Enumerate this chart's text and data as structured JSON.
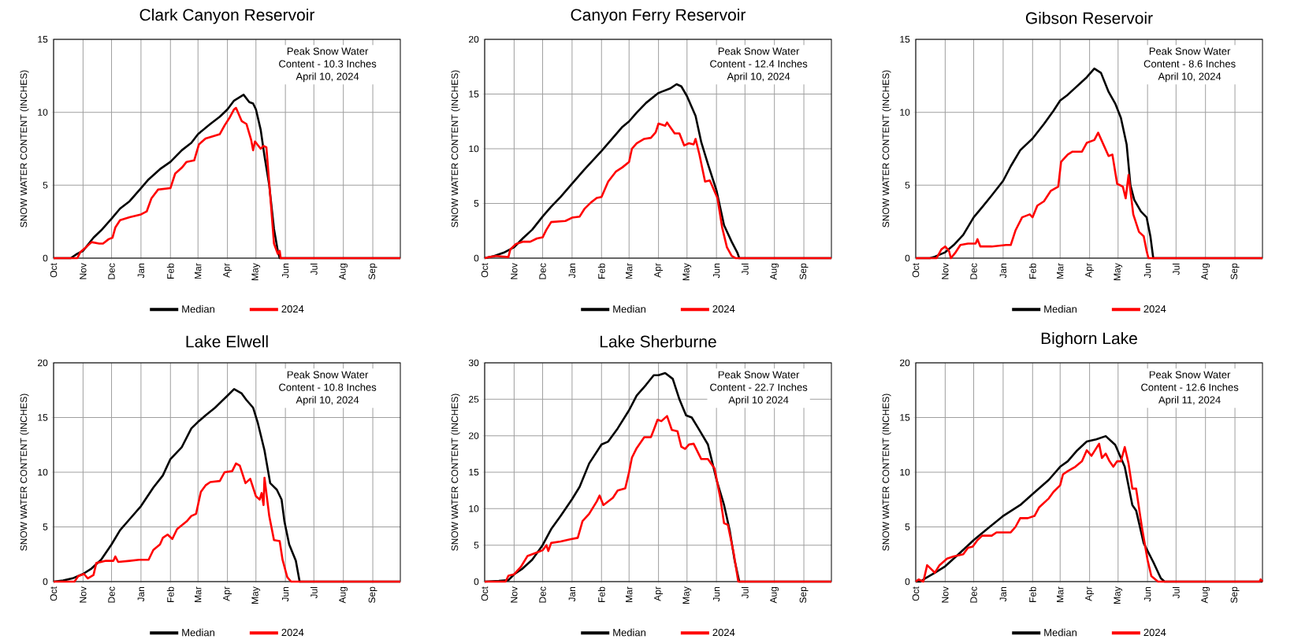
{
  "chart_data": [
    {
      "type": "line",
      "title": "Clark Canyon Reservoir",
      "ylabel": "SNOW WATER CONTENT (INCHES)",
      "annotations": [
        "Peak Snow Water",
        "Content - 10.3 Inches",
        "April 10, 2024"
      ],
      "xlim": [
        "2023-10-01",
        "2024-09-30"
      ],
      "ylim": [
        0,
        15
      ],
      "yticks": [
        0,
        5,
        10,
        15
      ],
      "grid": true,
      "legend": "bottom",
      "xticks": [
        {
          "value": "2023-10-01",
          "label": "Oct"
        },
        {
          "value": "2023-11-01",
          "label": "Nov"
        },
        {
          "value": "2023-12-01",
          "label": "Dec"
        },
        {
          "value": "2024-01-01",
          "label": "Jan"
        },
        {
          "value": "2024-02-01",
          "label": "Feb"
        },
        {
          "value": "2024-03-01",
          "label": "Mar"
        },
        {
          "value": "2024-04-01",
          "label": "Apr"
        },
        {
          "value": "2024-05-01",
          "label": "May"
        },
        {
          "value": "2024-06-01",
          "label": "Jun"
        },
        {
          "value": "2024-07-01",
          "label": "Jul"
        },
        {
          "value": "2024-08-01",
          "label": "Aug"
        },
        {
          "value": "2024-09-01",
          "label": "Sep"
        }
      ],
      "series": [
        {
          "name": "Median",
          "color": "#000000",
          "x": [
            "2023-10-01",
            "2023-10-19",
            "2023-10-26",
            "2023-11-01",
            "2023-11-12",
            "2023-11-20",
            "2023-12-01",
            "2023-12-10",
            "2023-12-20",
            "2024-01-01",
            "2024-01-09",
            "2024-01-21",
            "2024-02-01",
            "2024-02-13",
            "2024-02-23",
            "2024-03-01",
            "2024-03-14",
            "2024-03-24",
            "2024-04-01",
            "2024-04-08",
            "2024-04-18",
            "2024-04-24",
            "2024-04-28",
            "2024-05-01",
            "2024-05-06",
            "2024-05-10",
            "2024-05-15",
            "2024-05-20",
            "2024-05-24",
            "2024-05-26",
            "2024-09-30"
          ],
          "values": [
            0,
            0,
            0.3,
            0.5,
            1.4,
            1.9,
            2.7,
            3.4,
            3.9,
            4.8,
            5.4,
            6.1,
            6.6,
            7.4,
            7.9,
            8.5,
            9.2,
            9.7,
            10.2,
            10.8,
            11.2,
            10.7,
            10.6,
            10.2,
            8.8,
            7,
            5,
            2,
            0.5,
            0,
            0
          ]
        },
        {
          "name": "2024",
          "color": "#ff0000",
          "x": [
            "2023-10-01",
            "2023-10-26",
            "2023-10-29",
            "2023-11-05",
            "2023-11-10",
            "2023-11-18",
            "2023-11-22",
            "2023-11-28",
            "2023-12-02",
            "2023-12-05",
            "2023-12-10",
            "2023-12-20",
            "2024-01-01",
            "2024-01-07",
            "2024-01-12",
            "2024-01-19",
            "2024-02-01",
            "2024-02-06",
            "2024-02-13",
            "2024-02-18",
            "2024-02-26",
            "2024-03-02",
            "2024-03-09",
            "2024-03-24",
            "2024-03-29",
            "2024-04-03",
            "2024-04-08",
            "2024-04-10",
            "2024-04-16",
            "2024-04-21",
            "2024-04-26",
            "2024-04-28",
            "2024-04-30",
            "2024-05-06",
            "2024-05-09",
            "2024-05-12",
            "2024-05-17",
            "2024-05-20",
            "2024-05-24",
            "2024-05-26",
            "2024-05-27",
            "2024-09-30"
          ],
          "values": [
            0,
            0,
            0.4,
            0.8,
            1.1,
            1.0,
            1.0,
            1.3,
            1.4,
            2.1,
            2.6,
            2.8,
            3.0,
            3.2,
            4.1,
            4.7,
            4.8,
            5.8,
            6.2,
            6.6,
            6.7,
            7.8,
            8.2,
            8.5,
            9.1,
            9.6,
            10.2,
            10.3,
            9.4,
            9.2,
            8.1,
            7.4,
            8.0,
            7.5,
            7.7,
            7.6,
            3.5,
            1.0,
            0.3,
            0.5,
            0,
            0
          ]
        }
      ]
    },
    {
      "type": "line",
      "title": "Canyon Ferry Reservoir",
      "ylabel": "SNOW WATER CONTENT (INCHES)",
      "annotations": [
        "Peak Snow Water",
        "Content - 12.4 Inches",
        "April 10, 2024"
      ],
      "xlim": [
        "2023-10-01",
        "2024-09-30"
      ],
      "ylim": [
        0,
        20
      ],
      "yticks": [
        0,
        5,
        10,
        15,
        20
      ],
      "grid": true,
      "legend": "bottom",
      "xticks": [
        {
          "value": "2023-10-01",
          "label": "Oct"
        },
        {
          "value": "2023-11-01",
          "label": "Nov"
        },
        {
          "value": "2023-12-01",
          "label": "Dec"
        },
        {
          "value": "2024-01-01",
          "label": "Jan"
        },
        {
          "value": "2024-02-01",
          "label": "Feb"
        },
        {
          "value": "2024-03-01",
          "label": "Mar"
        },
        {
          "value": "2024-04-01",
          "label": "Apr"
        },
        {
          "value": "2024-05-01",
          "label": "May"
        },
        {
          "value": "2024-06-01",
          "label": "Jun"
        },
        {
          "value": "2024-07-01",
          "label": "Jul"
        },
        {
          "value": "2024-08-01",
          "label": "Aug"
        },
        {
          "value": "2024-09-01",
          "label": "Sep"
        }
      ],
      "series": [
        {
          "name": "Median",
          "color": "#000000",
          "x": [
            "2023-10-01",
            "2023-10-11",
            "2023-10-21",
            "2023-11-01",
            "2023-11-10",
            "2023-11-20",
            "2023-12-01",
            "2023-12-10",
            "2023-12-20",
            "2024-01-01",
            "2024-01-14",
            "2024-02-01",
            "2024-02-13",
            "2024-02-23",
            "2024-03-01",
            "2024-03-09",
            "2024-03-19",
            "2024-04-01",
            "2024-04-13",
            "2024-04-20",
            "2024-04-25",
            "2024-05-01",
            "2024-05-10",
            "2024-05-16",
            "2024-05-23",
            "2024-06-01",
            "2024-06-09",
            "2024-06-17",
            "2024-06-23",
            "2024-06-25",
            "2024-09-30"
          ],
          "values": [
            0,
            0.2,
            0.5,
            1.0,
            1.8,
            2.6,
            3.8,
            4.7,
            5.6,
            6.8,
            8.1,
            9.8,
            11.0,
            12.0,
            12.5,
            13.3,
            14.2,
            15.1,
            15.5,
            15.9,
            15.7,
            14.8,
            13.0,
            10.6,
            8.6,
            6.2,
            3.0,
            1.5,
            0.5,
            0,
            0
          ]
        },
        {
          "name": "2024",
          "color": "#ff0000",
          "x": [
            "2023-10-01",
            "2023-10-06",
            "2023-10-13",
            "2023-10-26",
            "2023-10-28",
            "2023-11-03",
            "2023-11-10",
            "2023-11-18",
            "2023-11-25",
            "2023-12-01",
            "2023-12-05",
            "2023-12-10",
            "2023-12-25",
            "2024-01-01",
            "2024-01-09",
            "2024-01-14",
            "2024-01-21",
            "2024-01-27",
            "2024-02-01",
            "2024-02-08",
            "2024-02-16",
            "2024-02-23",
            "2024-03-01",
            "2024-03-04",
            "2024-03-09",
            "2024-03-17",
            "2024-03-24",
            "2024-03-29",
            "2024-04-01",
            "2024-04-08",
            "2024-04-10",
            "2024-04-18",
            "2024-04-23",
            "2024-04-28",
            "2024-05-03",
            "2024-05-08",
            "2024-05-10",
            "2024-05-14",
            "2024-05-20",
            "2024-05-25",
            "2024-06-02",
            "2024-06-07",
            "2024-06-12",
            "2024-06-17",
            "2024-06-21",
            "2024-09-30"
          ],
          "values": [
            0,
            0.1,
            0.2,
            0.1,
            0.8,
            1.3,
            1.5,
            1.5,
            1.8,
            1.9,
            2.6,
            3.3,
            3.4,
            3.7,
            3.8,
            4.5,
            5.1,
            5.5,
            5.6,
            7.0,
            7.9,
            8.3,
            8.8,
            10.0,
            10.5,
            10.9,
            11.0,
            11.5,
            12.3,
            12.1,
            12.4,
            11.4,
            11.4,
            10.3,
            10.5,
            10.4,
            10.9,
            9.5,
            7.0,
            7.1,
            5.5,
            2.8,
            1.0,
            0.2,
            0,
            0
          ]
        }
      ]
    },
    {
      "type": "line",
      "title": "Gibson Reservoir",
      "ylabel": "SNOW WATER CONTENT (INCHES)",
      "annotations": [
        "Peak Snow Water",
        "Content - 8.6 Inches",
        "April 10, 2024"
      ],
      "xlim": [
        "2023-10-01",
        "2024-09-30"
      ],
      "ylim": [
        0,
        15
      ],
      "yticks": [
        0,
        5,
        10,
        15
      ],
      "grid": true,
      "legend": "bottom",
      "xticks": [
        {
          "value": "2023-10-01",
          "label": "Oct"
        },
        {
          "value": "2023-11-01",
          "label": "Nov"
        },
        {
          "value": "2023-12-01",
          "label": "Dec"
        },
        {
          "value": "2024-01-01",
          "label": "Jan"
        },
        {
          "value": "2024-02-01",
          "label": "Feb"
        },
        {
          "value": "2024-03-01",
          "label": "Mar"
        },
        {
          "value": "2024-04-01",
          "label": "Apr"
        },
        {
          "value": "2024-05-01",
          "label": "May"
        },
        {
          "value": "2024-06-01",
          "label": "Jun"
        },
        {
          "value": "2024-07-01",
          "label": "Jul"
        },
        {
          "value": "2024-08-01",
          "label": "Aug"
        },
        {
          "value": "2024-09-01",
          "label": "Sep"
        }
      ],
      "series": [
        {
          "name": "Median",
          "color": "#000000",
          "x": [
            "2023-10-01",
            "2023-10-16",
            "2023-10-21",
            "2023-11-01",
            "2023-11-10",
            "2023-11-20",
            "2023-12-01",
            "2023-12-10",
            "2023-12-20",
            "2024-01-01",
            "2024-01-09",
            "2024-01-19",
            "2024-02-01",
            "2024-02-13",
            "2024-02-23",
            "2024-03-01",
            "2024-03-09",
            "2024-03-19",
            "2024-03-29",
            "2024-04-06",
            "2024-04-13",
            "2024-04-21",
            "2024-04-28",
            "2024-05-04",
            "2024-05-10",
            "2024-05-14",
            "2024-05-18",
            "2024-05-25",
            "2024-05-31",
            "2024-06-04",
            "2024-06-07",
            "2024-09-30"
          ],
          "values": [
            0,
            0,
            0.1,
            0.4,
            0.9,
            1.6,
            2.8,
            3.5,
            4.3,
            5.3,
            6.3,
            7.4,
            8.2,
            9.2,
            10.1,
            10.8,
            11.2,
            11.8,
            12.4,
            13.0,
            12.7,
            11.4,
            10.6,
            9.6,
            7.8,
            5,
            4,
            3.2,
            2.8,
            1.5,
            0,
            0
          ]
        },
        {
          "name": "2024",
          "color": "#ff0000",
          "x": [
            "2023-10-01",
            "2023-10-23",
            "2023-10-28",
            "2023-11-01",
            "2023-11-05",
            "2023-11-07",
            "2023-11-12",
            "2023-11-17",
            "2023-11-25",
            "2023-12-03",
            "2023-12-05",
            "2023-12-08",
            "2023-12-20",
            "2024-01-04",
            "2024-01-09",
            "2024-01-14",
            "2024-01-21",
            "2024-01-29",
            "2024-02-01",
            "2024-02-06",
            "2024-02-13",
            "2024-02-20",
            "2024-02-28",
            "2024-03-02",
            "2024-03-09",
            "2024-03-14",
            "2024-03-24",
            "2024-03-29",
            "2024-04-06",
            "2024-04-10",
            "2024-04-21",
            "2024-04-25",
            "2024-04-30",
            "2024-05-06",
            "2024-05-09",
            "2024-05-12",
            "2024-05-17",
            "2024-05-23",
            "2024-05-28",
            "2024-05-31",
            "2024-06-02",
            "2024-09-30"
          ],
          "values": [
            0,
            0,
            0.6,
            0.8,
            0.5,
            0,
            0.4,
            0.9,
            1.0,
            1.0,
            1.3,
            0.8,
            0.8,
            0.9,
            0.9,
            1.9,
            2.8,
            3.0,
            2.8,
            3.6,
            3.9,
            4.6,
            4.9,
            6.6,
            7.1,
            7.3,
            7.3,
            7.9,
            8.1,
            8.6,
            7.0,
            7.1,
            5.1,
            4.9,
            4.1,
            5.7,
            3.0,
            1.8,
            1.5,
            0.5,
            0,
            0
          ]
        }
      ]
    },
    {
      "type": "line",
      "title": "Lake Elwell",
      "ylabel": "SNOW WATER CONTENT (INCHES)",
      "annotations": [
        "Peak Snow Water",
        "Content - 10.8 Inches",
        "April 10, 2024"
      ],
      "xlim": [
        "2023-10-01",
        "2024-09-30"
      ],
      "ylim": [
        0,
        20
      ],
      "yticks": [
        0,
        5,
        10,
        15,
        20
      ],
      "grid": true,
      "legend": "bottom",
      "xticks": [
        {
          "value": "2023-10-01",
          "label": "Oct"
        },
        {
          "value": "2023-11-01",
          "label": "Nov"
        },
        {
          "value": "2023-12-01",
          "label": "Dec"
        },
        {
          "value": "2024-01-01",
          "label": "Jan"
        },
        {
          "value": "2024-02-01",
          "label": "Feb"
        },
        {
          "value": "2024-03-01",
          "label": "Mar"
        },
        {
          "value": "2024-04-01",
          "label": "Apr"
        },
        {
          "value": "2024-05-01",
          "label": "May"
        },
        {
          "value": "2024-06-01",
          "label": "Jun"
        },
        {
          "value": "2024-07-01",
          "label": "Jul"
        },
        {
          "value": "2024-08-01",
          "label": "Aug"
        },
        {
          "value": "2024-09-01",
          "label": "Sep"
        }
      ],
      "series": [
        {
          "name": "Median",
          "color": "#000000",
          "x": [
            "2023-10-01",
            "2023-10-11",
            "2023-10-21",
            "2023-11-01",
            "2023-11-10",
            "2023-11-20",
            "2023-12-01",
            "2023-12-10",
            "2023-12-20",
            "2024-01-01",
            "2024-01-14",
            "2024-01-24",
            "2024-02-01",
            "2024-02-13",
            "2024-02-23",
            "2024-03-01",
            "2024-03-09",
            "2024-03-19",
            "2024-04-01",
            "2024-04-08",
            "2024-04-16",
            "2024-04-21",
            "2024-04-28",
            "2024-05-03",
            "2024-05-10",
            "2024-05-16",
            "2024-05-23",
            "2024-05-28",
            "2024-05-31",
            "2024-06-05",
            "2024-06-12",
            "2024-06-16",
            "2024-09-30"
          ],
          "values": [
            0,
            0.1,
            0.3,
            0.7,
            1.2,
            2.0,
            3.4,
            4.7,
            5.7,
            6.9,
            8.6,
            9.7,
            11.2,
            12.3,
            14.0,
            14.6,
            15.2,
            15.9,
            17.0,
            17.6,
            17.2,
            16.6,
            15.9,
            14.5,
            12,
            9.0,
            8.4,
            7.5,
            5.5,
            3.4,
            1.9,
            0,
            0
          ]
        },
        {
          "name": "2024",
          "color": "#ff0000",
          "x": [
            "2023-10-01",
            "2023-10-23",
            "2023-10-27",
            "2023-11-02",
            "2023-11-06",
            "2023-11-12",
            "2023-11-15",
            "2023-11-25",
            "2023-12-03",
            "2023-12-05",
            "2023-12-08",
            "2023-12-20",
            "2023-12-30",
            "2024-01-09",
            "2024-01-14",
            "2024-01-21",
            "2024-01-24",
            "2024-01-29",
            "2024-02-03",
            "2024-02-08",
            "2024-02-18",
            "2024-02-23",
            "2024-02-28",
            "2024-03-04",
            "2024-03-09",
            "2024-03-14",
            "2024-03-24",
            "2024-03-29",
            "2024-04-06",
            "2024-04-10",
            "2024-04-14",
            "2024-04-20",
            "2024-04-25",
            "2024-05-01",
            "2024-05-05",
            "2024-05-07",
            "2024-05-09",
            "2024-05-10",
            "2024-05-15",
            "2024-05-20",
            "2024-05-26",
            "2024-05-29",
            "2024-06-03",
            "2024-06-07",
            "2024-09-30"
          ],
          "values": [
            0,
            0,
            0.5,
            0.7,
            0.3,
            0.6,
            1.7,
            1.9,
            1.9,
            2.3,
            1.8,
            1.9,
            2.0,
            2.0,
            2.9,
            3.4,
            4.0,
            4.3,
            3.9,
            4.8,
            5.5,
            6.0,
            6.2,
            8.2,
            8.8,
            9.1,
            9.2,
            10.0,
            10.1,
            10.8,
            10.6,
            9.0,
            9.4,
            7.8,
            7.5,
            8.1,
            7.0,
            9.5,
            6.0,
            3.8,
            3.7,
            2.0,
            0.4,
            0,
            0
          ]
        }
      ]
    },
    {
      "type": "line",
      "title": "Lake Sherburne",
      "ylabel": "SNOW WATER CONTENT (INCHES)",
      "annotations": [
        "Peak Snow Water",
        "Content - 22.7 Inches",
        "April 10 2024"
      ],
      "xlim": [
        "2023-10-01",
        "2024-09-30"
      ],
      "ylim": [
        0,
        30
      ],
      "yticks": [
        0,
        5,
        10,
        15,
        20,
        25,
        30
      ],
      "grid": true,
      "legend": "bottom",
      "xticks": [
        {
          "value": "2023-10-01",
          "label": "Oct"
        },
        {
          "value": "2023-11-01",
          "label": "Nov"
        },
        {
          "value": "2023-12-01",
          "label": "Dec"
        },
        {
          "value": "2024-01-01",
          "label": "Jan"
        },
        {
          "value": "2024-02-01",
          "label": "Feb"
        },
        {
          "value": "2024-03-01",
          "label": "Mar"
        },
        {
          "value": "2024-04-01",
          "label": "Apr"
        },
        {
          "value": "2024-05-01",
          "label": "May"
        },
        {
          "value": "2024-06-01",
          "label": "Jun"
        },
        {
          "value": "2024-07-01",
          "label": "Jul"
        },
        {
          "value": "2024-08-01",
          "label": "Aug"
        },
        {
          "value": "2024-09-01",
          "label": "Sep"
        }
      ],
      "series": [
        {
          "name": "Median",
          "color": "#000000",
          "x": [
            "2023-10-01",
            "2023-10-16",
            "2023-10-26",
            "2023-11-01",
            "2023-11-10",
            "2023-11-20",
            "2023-12-01",
            "2023-12-10",
            "2023-12-20",
            "2024-01-01",
            "2024-01-09",
            "2024-01-19",
            "2024-02-01",
            "2024-02-08",
            "2024-02-18",
            "2024-03-01",
            "2024-03-09",
            "2024-03-19",
            "2024-03-27",
            "2024-04-01",
            "2024-04-08",
            "2024-04-16",
            "2024-04-23",
            "2024-04-30",
            "2024-05-06",
            "2024-05-13",
            "2024-05-23",
            "2024-06-01",
            "2024-06-09",
            "2024-06-15",
            "2024-06-20",
            "2024-06-25",
            "2024-09-30"
          ],
          "values": [
            0,
            0.1,
            0.2,
            1.0,
            1.8,
            3.0,
            5.0,
            7.2,
            9.0,
            11.3,
            13.0,
            16.2,
            18.8,
            19.2,
            21.0,
            23.5,
            25.5,
            27.0,
            28.3,
            28.3,
            28.6,
            27.8,
            25,
            22.8,
            22.5,
            21,
            18.8,
            14.0,
            10.5,
            7.0,
            3.0,
            0,
            0
          ]
        },
        {
          "name": "2024",
          "color": "#ff0000",
          "x": [
            "2023-10-01",
            "2023-10-23",
            "2023-10-26",
            "2023-11-01",
            "2023-11-08",
            "2023-11-15",
            "2023-11-25",
            "2023-12-01",
            "2023-12-05",
            "2023-12-07",
            "2023-12-10",
            "2023-12-20",
            "2023-12-30",
            "2024-01-07",
            "2024-01-12",
            "2024-01-19",
            "2024-01-27",
            "2024-01-30",
            "2024-02-03",
            "2024-02-13",
            "2024-02-18",
            "2024-02-26",
            "2024-03-01",
            "2024-03-04",
            "2024-03-09",
            "2024-03-17",
            "2024-03-24",
            "2024-03-27",
            "2024-03-31",
            "2024-04-04",
            "2024-04-10",
            "2024-04-15",
            "2024-04-21",
            "2024-04-25",
            "2024-04-29",
            "2024-05-03",
            "2024-05-08",
            "2024-05-16",
            "2024-05-23",
            "2024-05-30",
            "2024-06-05",
            "2024-06-09",
            "2024-06-13",
            "2024-06-19",
            "2024-06-24",
            "2024-09-30"
          ],
          "values": [
            0,
            0,
            0.8,
            1.0,
            2.0,
            3.5,
            4.0,
            4.3,
            5.0,
            4.2,
            5.3,
            5.5,
            5.8,
            6.0,
            8.3,
            9.3,
            11.0,
            11.8,
            10.5,
            11.5,
            12.5,
            12.8,
            15.0,
            17.0,
            18.3,
            19.8,
            19.8,
            20.8,
            22.2,
            22.0,
            22.7,
            20.8,
            20.6,
            18.5,
            18.2,
            18.8,
            18.9,
            16.8,
            16.8,
            15.5,
            11.5,
            8.0,
            7.8,
            4.0,
            0,
            0
          ]
        }
      ]
    },
    {
      "type": "line",
      "title": "Bighorn Lake",
      "ylabel": "SNOW WATER CONTENT (INCHES)",
      "annotations": [
        "Peak Snow Water",
        "Content - 12.6 Inches",
        "April 11, 2024"
      ],
      "xlim": [
        "2023-10-01",
        "2024-09-30"
      ],
      "ylim": [
        0,
        20
      ],
      "yticks": [
        0,
        5,
        10,
        15,
        20
      ],
      "grid": true,
      "legend": "bottom",
      "xticks": [
        {
          "value": "2023-10-01",
          "label": "Oct"
        },
        {
          "value": "2023-11-01",
          "label": "Nov"
        },
        {
          "value": "2023-12-01",
          "label": "Dec"
        },
        {
          "value": "2024-01-01",
          "label": "Jan"
        },
        {
          "value": "2024-02-01",
          "label": "Feb"
        },
        {
          "value": "2024-03-01",
          "label": "Mar"
        },
        {
          "value": "2024-04-01",
          "label": "Apr"
        },
        {
          "value": "2024-05-01",
          "label": "May"
        },
        {
          "value": "2024-06-01",
          "label": "Jun"
        },
        {
          "value": "2024-07-01",
          "label": "Jul"
        },
        {
          "value": "2024-08-01",
          "label": "Aug"
        },
        {
          "value": "2024-09-01",
          "label": "Sep"
        }
      ],
      "series": [
        {
          "name": "Median",
          "color": "#000000",
          "x": [
            "2023-10-01",
            "2023-10-06",
            "2023-10-11",
            "2023-10-21",
            "2023-11-01",
            "2023-11-15",
            "2023-12-01",
            "2023-12-15",
            "2024-01-01",
            "2024-01-19",
            "2024-02-01",
            "2024-02-18",
            "2024-03-01",
            "2024-03-09",
            "2024-03-19",
            "2024-03-29",
            "2024-04-08",
            "2024-04-18",
            "2024-04-28",
            "2024-05-08",
            "2024-05-16",
            "2024-05-20",
            "2024-05-28",
            "2024-06-07",
            "2024-06-15",
            "2024-06-19",
            "2024-09-30"
          ],
          "values": [
            0,
            0,
            0.3,
            0.8,
            1.4,
            2.5,
            3.8,
            4.8,
            6.0,
            7.0,
            8.0,
            9.3,
            10.5,
            11.0,
            12.0,
            12.8,
            13.0,
            13.3,
            12.5,
            10.5,
            7.0,
            6.5,
            3.5,
            1.8,
            0.3,
            0,
            0
          ]
        },
        {
          "name": "2024",
          "color": "#ff0000",
          "x": [
            "2023-10-01",
            "2023-10-04",
            "2023-10-09",
            "2023-10-13",
            "2023-10-19",
            "2023-10-21",
            "2023-10-26",
            "2023-11-03",
            "2023-11-10",
            "2023-11-20",
            "2023-11-25",
            "2023-11-30",
            "2023-12-05",
            "2023-12-10",
            "2023-12-20",
            "2023-12-25",
            "2024-01-09",
            "2024-01-14",
            "2024-01-19",
            "2024-01-27",
            "2024-02-03",
            "2024-02-08",
            "2024-02-18",
            "2024-02-23",
            "2024-03-01",
            "2024-03-04",
            "2024-03-09",
            "2024-03-17",
            "2024-03-24",
            "2024-03-29",
            "2024-04-03",
            "2024-04-11",
            "2024-04-14",
            "2024-04-18",
            "2024-04-22",
            "2024-04-26",
            "2024-04-30",
            "2024-05-04",
            "2024-05-08",
            "2024-05-12",
            "2024-05-16",
            "2024-05-20",
            "2024-05-26",
            "2024-06-01",
            "2024-06-05",
            "2024-06-12",
            "2024-09-27",
            "2024-09-28",
            "2024-09-30"
          ],
          "values": [
            0,
            0.2,
            0,
            1.5,
            1.0,
            0.8,
            1.5,
            2.1,
            2.3,
            2.5,
            3.1,
            3.2,
            3.8,
            4.2,
            4.2,
            4.5,
            4.5,
            5.0,
            5.8,
            5.8,
            6.0,
            6.8,
            7.6,
            8.2,
            8.8,
            9.8,
            10.1,
            10.5,
            11.0,
            12.0,
            11.5,
            12.6,
            11.3,
            11.7,
            11.0,
            10.5,
            11.0,
            11.0,
            12.3,
            10.8,
            8.5,
            8.5,
            5.0,
            2.0,
            0.5,
            0,
            0,
            0.2,
            0
          ]
        }
      ]
    }
  ]
}
